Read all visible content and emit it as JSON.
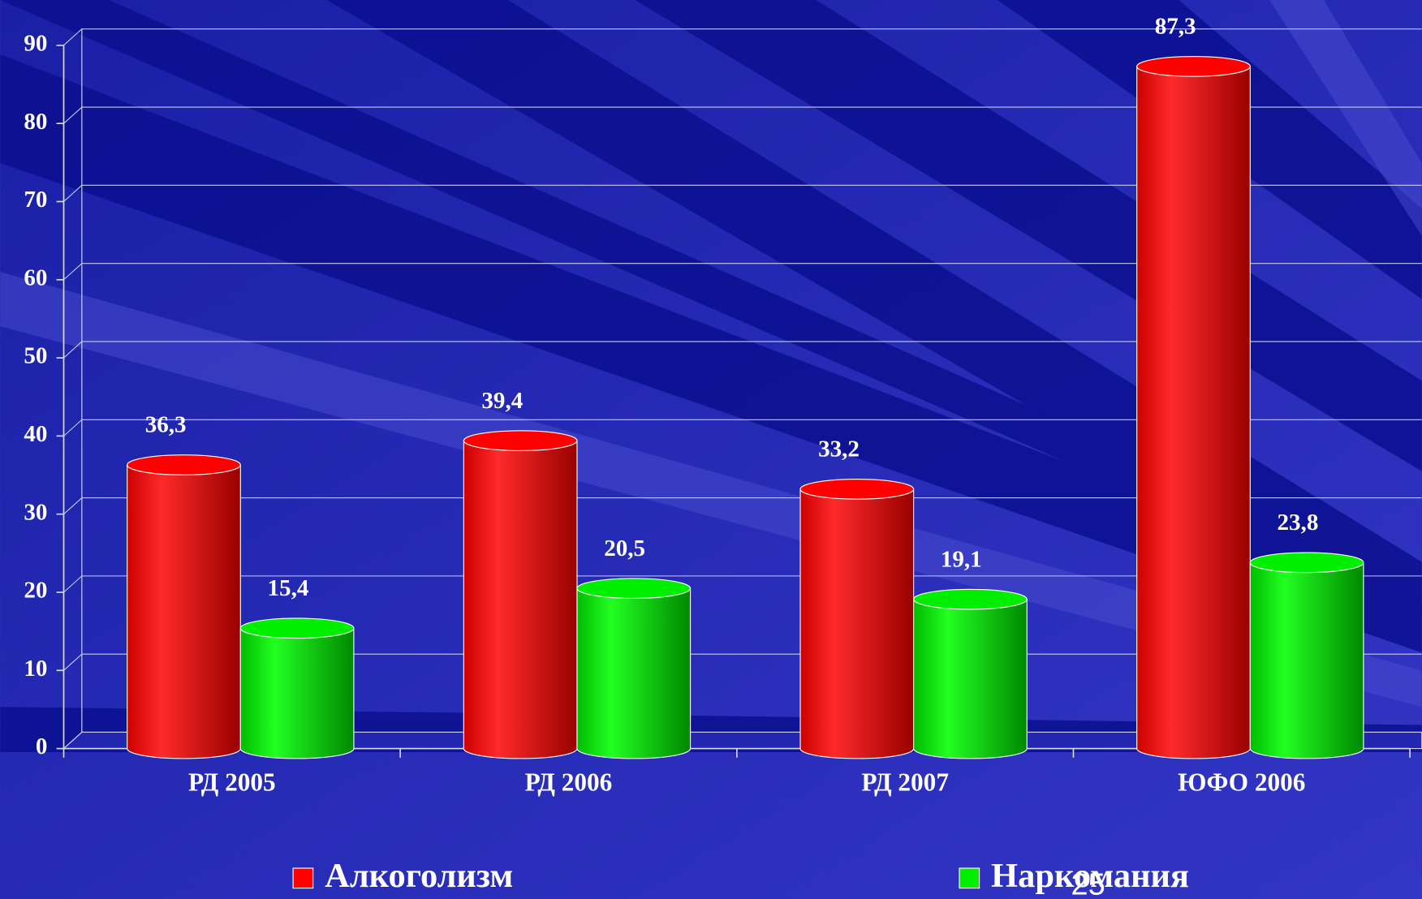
{
  "chart_data": {
    "type": "bar",
    "categories": [
      "РД 2005",
      "РД 2006",
      "РД 2007",
      "ЮФО 2006"
    ],
    "series": [
      {
        "name": "Алкоголизм",
        "color": "#ff0000",
        "values": [
          36.3,
          39.4,
          33.2,
          87.3
        ],
        "value_labels": [
          "36,3",
          "39,4",
          "33,2",
          "87,3"
        ]
      },
      {
        "name": "Наркомания",
        "color": "#00ee00",
        "values": [
          15.4,
          20.5,
          19.1,
          23.8
        ],
        "value_labels": [
          "15,4",
          "20,5",
          "19,1",
          "23,8"
        ]
      }
    ],
    "ylim": [
      0,
      90
    ],
    "yticks": [
      0,
      10,
      20,
      30,
      40,
      50,
      60,
      70,
      80,
      90
    ],
    "grid": true,
    "page_number": "25"
  }
}
